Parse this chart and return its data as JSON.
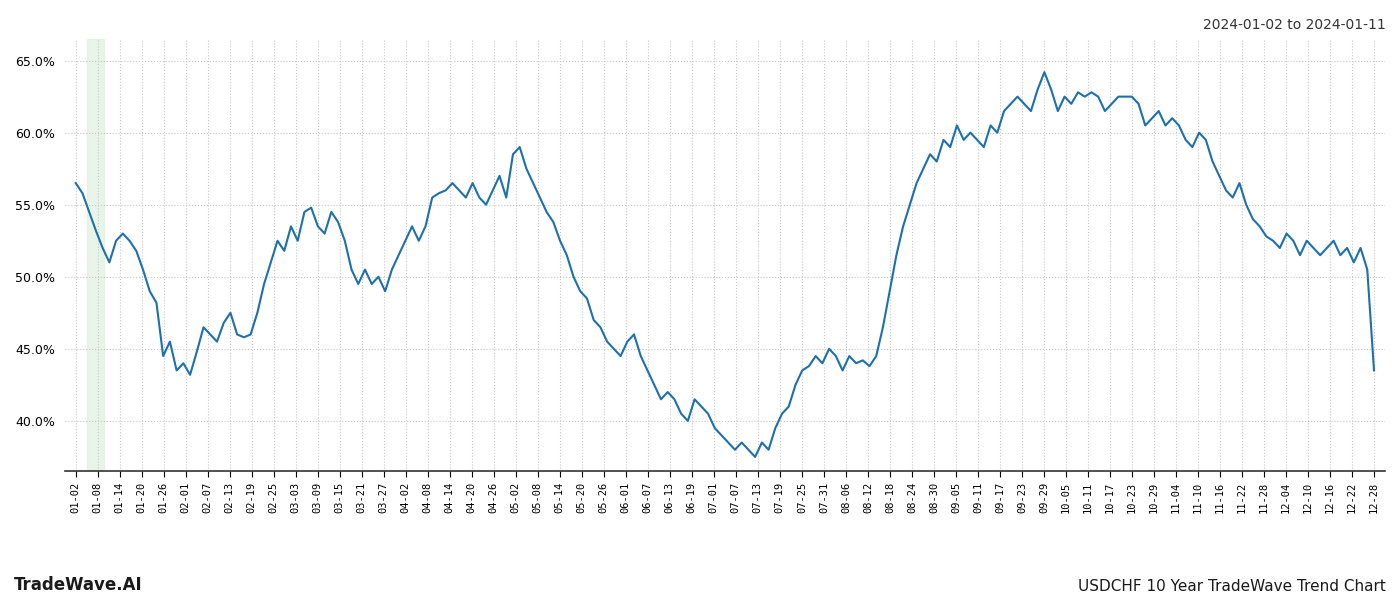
{
  "title_top_right": "2024-01-02 to 2024-01-11",
  "title_bottom_left": "TradeWave.AI",
  "title_bottom_right": "USDCHF 10 Year TradeWave Trend Chart",
  "line_color": "#1e6fad",
  "line_width": 1.5,
  "background_color": "#ffffff",
  "grid_color": "#c8c8c8",
  "ylim": [
    36.5,
    66.5
  ],
  "yticks": [
    40.0,
    45.0,
    50.0,
    55.0,
    60.0,
    65.0
  ],
  "highlight_color": "#daeeda",
  "highlight_alpha": 0.6,
  "highlight_xstart": 0.5,
  "highlight_xend": 1.3,
  "x_labels": [
    "01-02",
    "01-08",
    "01-14",
    "01-20",
    "01-26",
    "02-01",
    "02-07",
    "02-13",
    "02-19",
    "02-25",
    "03-03",
    "03-09",
    "03-15",
    "03-21",
    "03-27",
    "04-02",
    "04-08",
    "04-14",
    "04-20",
    "04-26",
    "05-02",
    "05-08",
    "05-14",
    "05-20",
    "05-26",
    "06-01",
    "06-07",
    "06-13",
    "06-19",
    "07-01",
    "07-07",
    "07-13",
    "07-19",
    "07-25",
    "07-31",
    "08-06",
    "08-12",
    "08-18",
    "08-24",
    "08-30",
    "09-05",
    "09-11",
    "09-17",
    "09-23",
    "09-29",
    "10-05",
    "10-11",
    "10-17",
    "10-23",
    "10-29",
    "11-04",
    "11-10",
    "11-16",
    "11-22",
    "11-28",
    "12-04",
    "12-10",
    "12-16",
    "12-22",
    "12-28"
  ],
  "values": [
    56.5,
    55.8,
    54.5,
    53.2,
    52.0,
    51.0,
    52.5,
    53.0,
    52.5,
    51.8,
    50.5,
    49.0,
    48.2,
    44.5,
    45.5,
    43.5,
    44.0,
    43.2,
    44.8,
    46.5,
    46.0,
    45.5,
    46.8,
    47.5,
    46.0,
    45.8,
    46.0,
    47.5,
    49.5,
    51.0,
    52.5,
    51.8,
    53.5,
    52.5,
    54.5,
    54.8,
    53.5,
    53.0,
    54.5,
    53.8,
    52.5,
    50.5,
    49.5,
    50.5,
    49.5,
    50.0,
    49.0,
    50.5,
    51.5,
    52.5,
    53.5,
    52.5,
    53.5,
    55.5,
    55.8,
    56.0,
    56.5,
    56.0,
    55.5,
    56.5,
    55.5,
    55.0,
    56.0,
    57.0,
    55.5,
    58.5,
    59.0,
    57.5,
    56.5,
    55.5,
    54.5,
    53.8,
    52.5,
    51.5,
    50.0,
    49.0,
    48.5,
    47.0,
    46.5,
    45.5,
    45.0,
    44.5,
    45.5,
    46.0,
    44.5,
    43.5,
    42.5,
    41.5,
    42.0,
    41.5,
    40.5,
    40.0,
    41.5,
    41.0,
    40.5,
    39.5,
    39.0,
    38.5,
    38.0,
    38.5,
    38.0,
    37.5,
    38.5,
    38.0,
    39.5,
    40.5,
    41.0,
    42.5,
    43.5,
    43.8,
    44.5,
    44.0,
    45.0,
    44.5,
    43.5,
    44.5,
    44.0,
    44.2,
    43.8,
    44.5,
    46.5,
    49.0,
    51.5,
    53.5,
    55.0,
    56.5,
    57.5,
    58.5,
    58.0,
    59.5,
    59.0,
    60.5,
    59.5,
    60.0,
    59.5,
    59.0,
    60.5,
    60.0,
    61.5,
    62.0,
    62.5,
    62.0,
    61.5,
    63.0,
    64.2,
    63.0,
    61.5,
    62.5,
    62.0,
    62.8,
    62.5,
    62.8,
    62.5,
    61.5,
    62.0,
    62.5,
    62.5,
    62.5,
    62.0,
    60.5,
    61.0,
    61.5,
    60.5,
    61.0,
    60.5,
    59.5,
    59.0,
    60.0,
    59.5,
    58.0,
    57.0,
    56.0,
    55.5,
    56.5,
    55.0,
    54.0,
    53.5,
    52.8,
    52.5,
    52.0,
    53.0,
    52.5,
    51.5,
    52.5,
    52.0,
    51.5,
    52.0,
    52.5,
    51.5,
    52.0,
    51.0,
    52.0,
    50.5,
    43.5
  ]
}
